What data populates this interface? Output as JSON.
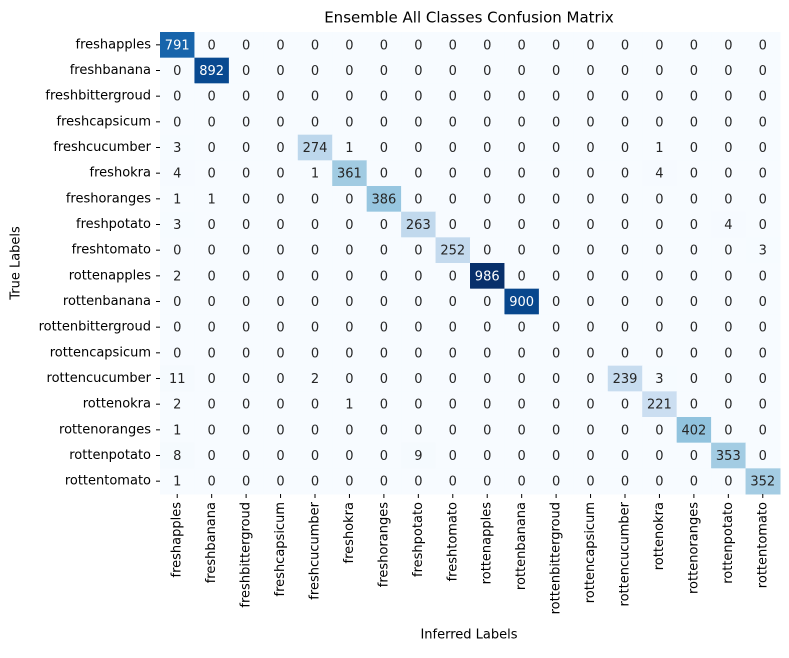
{
  "chart_data": {
    "type": "heatmap",
    "title": "Ensemble All Classes Confusion Matrix",
    "x_label": "Inferred Labels",
    "y_label": "True Labels",
    "categories": [
      "freshapples",
      "freshbanana",
      "freshbittergroud",
      "freshcapsicum",
      "freshcucumber",
      "freshokra",
      "freshoranges",
      "freshpotato",
      "freshtomato",
      "rottenapples",
      "rottenbanana",
      "rottenbittergroud",
      "rottencapsicum",
      "rottencucumber",
      "rottenokra",
      "rottenoranges",
      "rottenpotato",
      "rottentomato"
    ],
    "y_categories": [
      "freshapples",
      "freshbanana",
      "freshbittergroud",
      "freshcapsicum",
      "freshcucumber",
      "freshokra",
      "freshoranges",
      "freshpotato",
      "freshtomato",
      "rottenapples",
      "rottenbanana",
      "rottenbittergroud",
      "rottencapsicum",
      "rottencucumber",
      "rottenokra",
      "rottenoranges",
      "rottenpotato",
      "rottentomato"
    ],
    "colorscale": [
      "#f7fbff",
      "#deebf7",
      "#c6dbef",
      "#9ecae1",
      "#6baed6",
      "#4292c6",
      "#2171b5",
      "#08519c",
      "#08306b"
    ],
    "values": [
      [
        791,
        0,
        0,
        0,
        0,
        0,
        0,
        0,
        0,
        0,
        0,
        0,
        0,
        0,
        0,
        0,
        0,
        0
      ],
      [
        0,
        892,
        0,
        0,
        0,
        0,
        0,
        0,
        0,
        0,
        0,
        0,
        0,
        0,
        0,
        0,
        0,
        0
      ],
      [
        0,
        0,
        0,
        0,
        0,
        0,
        0,
        0,
        0,
        0,
        0,
        0,
        0,
        0,
        0,
        0,
        0,
        0
      ],
      [
        0,
        0,
        0,
        0,
        0,
        0,
        0,
        0,
        0,
        0,
        0,
        0,
        0,
        0,
        0,
        0,
        0,
        0
      ],
      [
        3,
        0,
        0,
        0,
        274,
        1,
        0,
        0,
        0,
        0,
        0,
        0,
        0,
        0,
        1,
        0,
        0,
        0
      ],
      [
        4,
        0,
        0,
        0,
        1,
        361,
        0,
        0,
        0,
        0,
        0,
        0,
        0,
        0,
        4,
        0,
        0,
        0
      ],
      [
        1,
        1,
        0,
        0,
        0,
        0,
        386,
        0,
        0,
        0,
        0,
        0,
        0,
        0,
        0,
        0,
        0,
        0
      ],
      [
        3,
        0,
        0,
        0,
        0,
        0,
        0,
        263,
        0,
        0,
        0,
        0,
        0,
        0,
        0,
        0,
        4,
        0
      ],
      [
        0,
        0,
        0,
        0,
        0,
        0,
        0,
        0,
        252,
        0,
        0,
        0,
        0,
        0,
        0,
        0,
        0,
        3
      ],
      [
        2,
        0,
        0,
        0,
        0,
        0,
        0,
        0,
        0,
        986,
        0,
        0,
        0,
        0,
        0,
        0,
        0,
        0
      ],
      [
        0,
        0,
        0,
        0,
        0,
        0,
        0,
        0,
        0,
        0,
        900,
        0,
        0,
        0,
        0,
        0,
        0,
        0
      ],
      [
        0,
        0,
        0,
        0,
        0,
        0,
        0,
        0,
        0,
        0,
        0,
        0,
        0,
        0,
        0,
        0,
        0,
        0
      ],
      [
        0,
        0,
        0,
        0,
        0,
        0,
        0,
        0,
        0,
        0,
        0,
        0,
        0,
        0,
        0,
        0,
        0,
        0
      ],
      [
        11,
        0,
        0,
        0,
        2,
        0,
        0,
        0,
        0,
        0,
        0,
        0,
        0,
        239,
        3,
        0,
        0,
        0
      ],
      [
        2,
        0,
        0,
        0,
        0,
        1,
        0,
        0,
        0,
        0,
        0,
        0,
        0,
        0,
        221,
        0,
        0,
        0
      ],
      [
        1,
        0,
        0,
        0,
        0,
        0,
        0,
        0,
        0,
        0,
        0,
        0,
        0,
        0,
        0,
        402,
        0,
        0
      ],
      [
        8,
        0,
        0,
        0,
        0,
        0,
        0,
        9,
        0,
        0,
        0,
        0,
        0,
        0,
        0,
        0,
        353,
        0
      ],
      [
        1,
        0,
        0,
        0,
        0,
        0,
        0,
        0,
        0,
        0,
        0,
        0,
        0,
        0,
        0,
        0,
        0,
        352
      ]
    ]
  }
}
